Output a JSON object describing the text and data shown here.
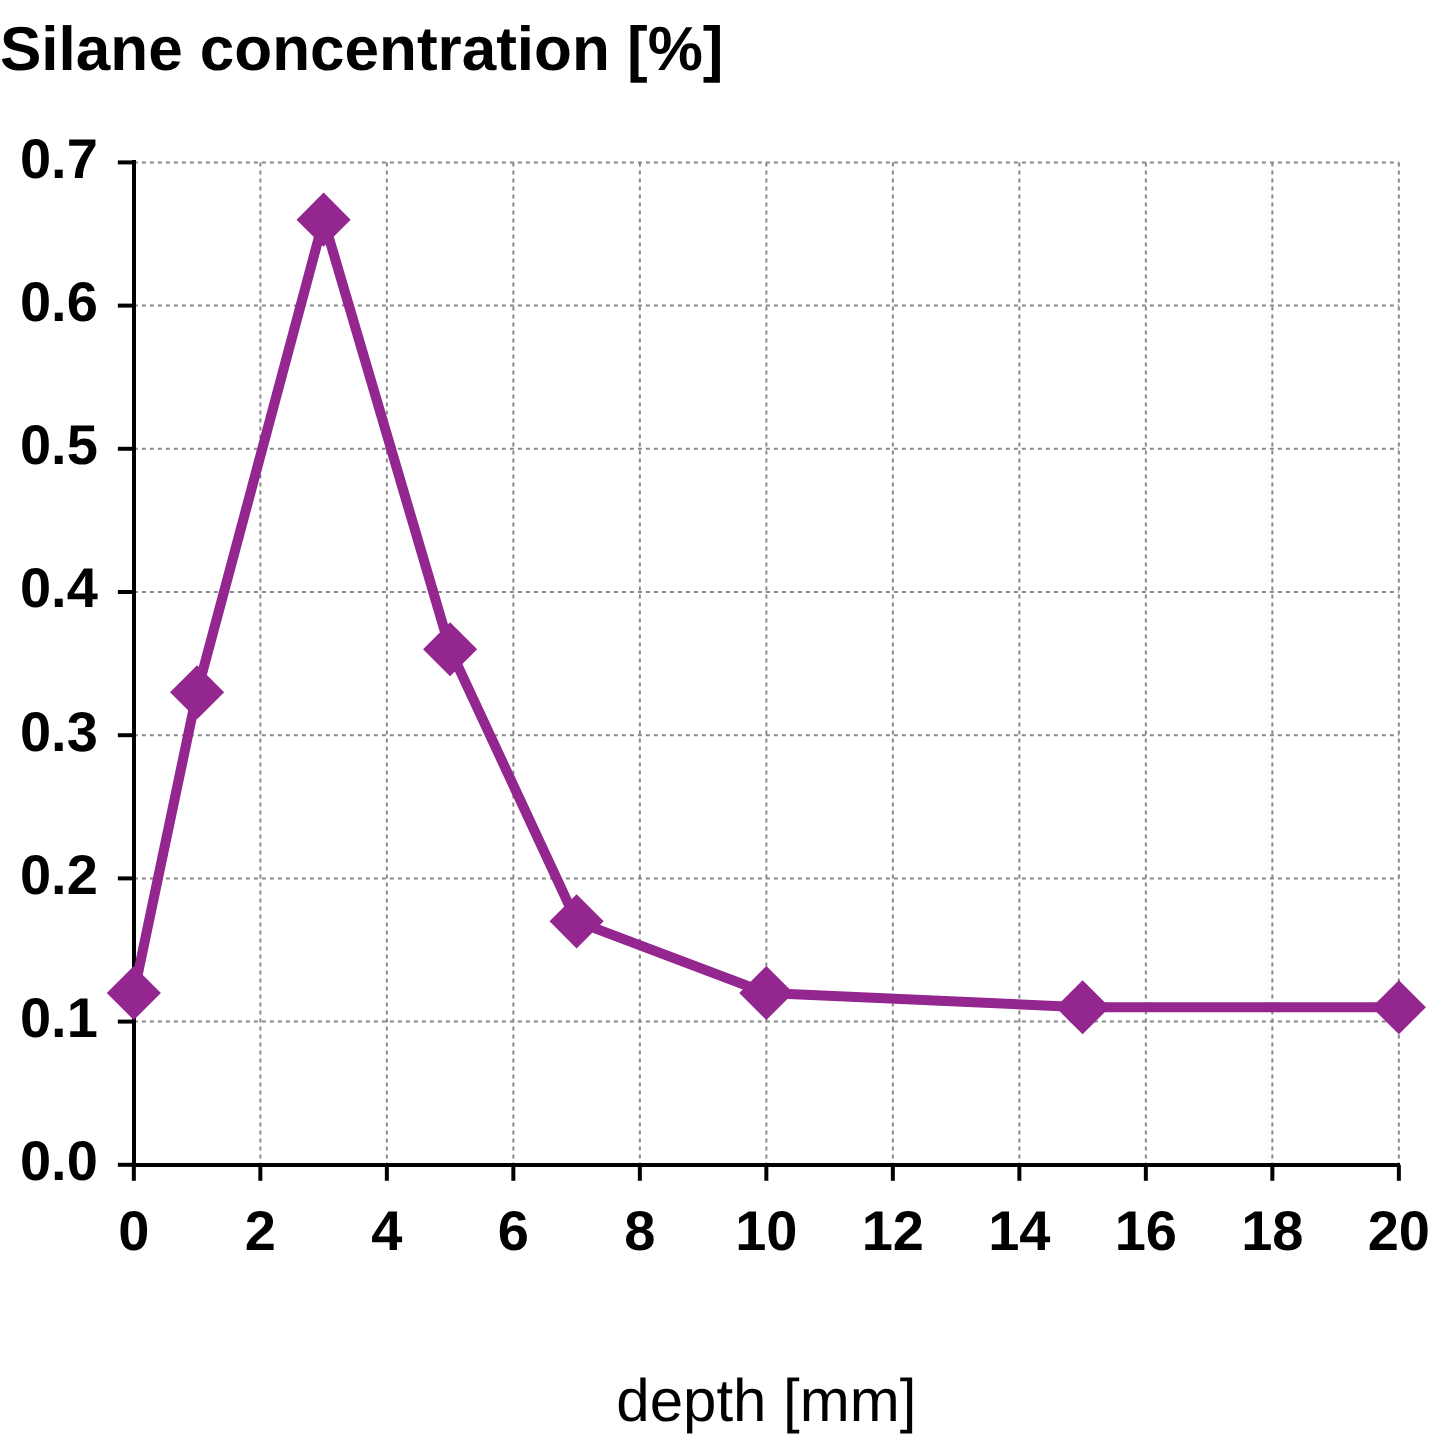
{
  "chart_data": {
    "type": "line",
    "title": "Silane concentration [%]",
    "xlabel": "depth [mm]",
    "x": [
      0,
      1,
      3,
      5,
      7,
      10,
      15,
      20
    ],
    "series": [
      {
        "color": "#93268f",
        "values": [
          0.12,
          0.33,
          0.66,
          0.36,
          0.17,
          0.12,
          0.11,
          0.11
        ]
      }
    ],
    "xlim": [
      0,
      20
    ],
    "xticks": [
      0,
      2,
      4,
      6,
      8,
      10,
      12,
      14,
      16,
      18,
      20
    ],
    "ylim": [
      0,
      0.7
    ],
    "yticks": [
      {
        "value": 0,
        "label": "0.0"
      },
      0.1,
      0.2,
      0.3,
      0.4,
      0.5,
      0.6,
      0.7
    ],
    "grid": true,
    "legend": false,
    "marker": "diamond",
    "line_style": "solid"
  }
}
